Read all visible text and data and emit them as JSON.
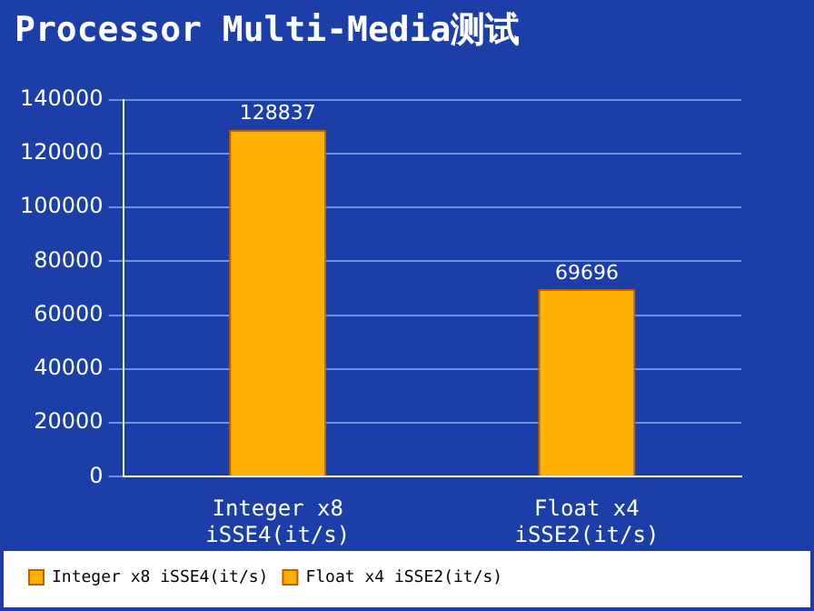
{
  "chart_data": {
    "type": "bar",
    "title": "Processor Multi-Media测试",
    "categories": [
      "Integer x8 iSSE4(it/s)",
      "Float x4 iSSE2(it/s)"
    ],
    "series": [
      {
        "name": "Integer x8 iSSE4(it/s)",
        "color": "#ffb000",
        "values": [
          128837,
          null
        ]
      },
      {
        "name": "Float x4 iSSE2(it/s)",
        "color": "#ffb000",
        "values": [
          null,
          69696
        ]
      }
    ],
    "ylim": [
      0,
      140000
    ],
    "yticks": [
      0,
      20000,
      40000,
      60000,
      80000,
      100000,
      120000,
      140000
    ],
    "grid": "y",
    "legend": "bottom",
    "data_labels": true
  }
}
